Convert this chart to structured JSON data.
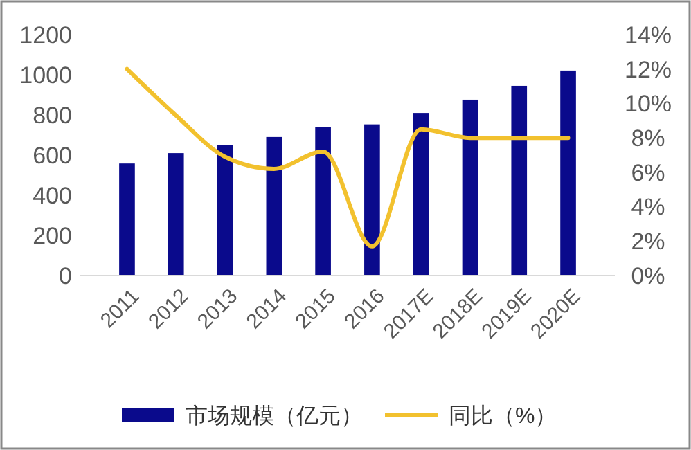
{
  "chart_data": {
    "type": "bar",
    "categories": [
      "2011",
      "2012",
      "2013",
      "2014",
      "2015",
      "2016",
      "2017E",
      "2018E",
      "2019E",
      "2020E"
    ],
    "series": [
      {
        "name": "市场规模（亿元）",
        "color": "#0a0a8c",
        "values": [
          558,
          610,
          649,
          690,
          739,
          753,
          810,
          876,
          945,
          1021
        ]
      },
      {
        "name": "同比（%）",
        "type": "line",
        "axis": "y2",
        "color": "#f2c12e",
        "values": [
          12.0,
          9.3,
          6.9,
          6.2,
          7.2,
          1.7,
          8.5,
          8.0,
          8.0,
          8.0
        ]
      }
    ],
    "ylim": [
      0,
      1200
    ],
    "yticks": [
      0,
      200,
      400,
      600,
      800,
      1000,
      1200
    ],
    "y2lim": [
      0,
      14
    ],
    "y2ticks": [
      {
        "value": 0,
        "label": "0%"
      },
      {
        "value": 2,
        "label": "2%"
      },
      {
        "value": 4,
        "label": "4%"
      },
      {
        "value": 6,
        "label": "6%"
      },
      {
        "value": 8,
        "label": "8%"
      },
      {
        "value": 10,
        "label": "10%"
      },
      {
        "value": 12,
        "label": "12%"
      },
      {
        "value": 14,
        "label": "14%"
      }
    ],
    "legend": "bottom",
    "marker": "none",
    "line_style": "solid"
  }
}
